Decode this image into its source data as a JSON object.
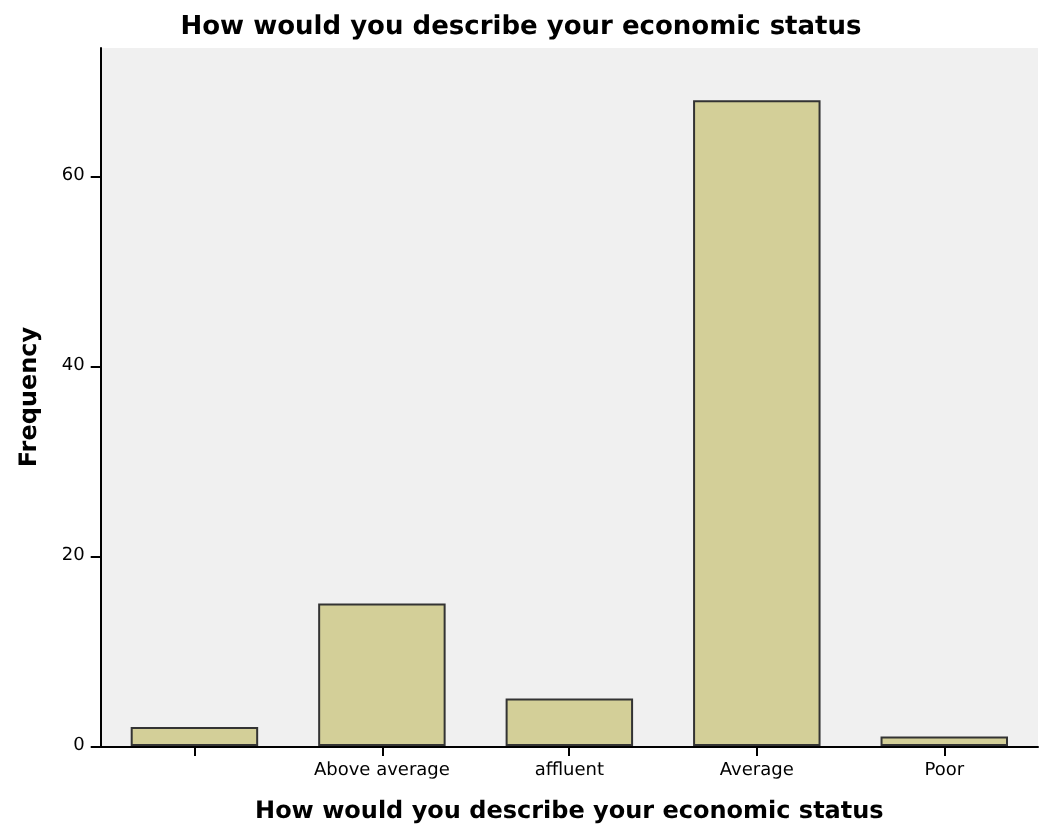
{
  "chart_data": {
    "type": "bar",
    "title": "How would you describe your economic status",
    "xlabel": "How would you describe your economic status",
    "ylabel": "Frequency",
    "categories": [
      null,
      "Above average",
      "affluent",
      "Average",
      "Poor"
    ],
    "values": [
      2,
      15,
      5,
      68,
      1
    ],
    "color": "#d3cf98",
    "ylim": [
      0,
      73.5
    ],
    "yticks": [
      0,
      20,
      40,
      60
    ],
    "grid": false
  }
}
